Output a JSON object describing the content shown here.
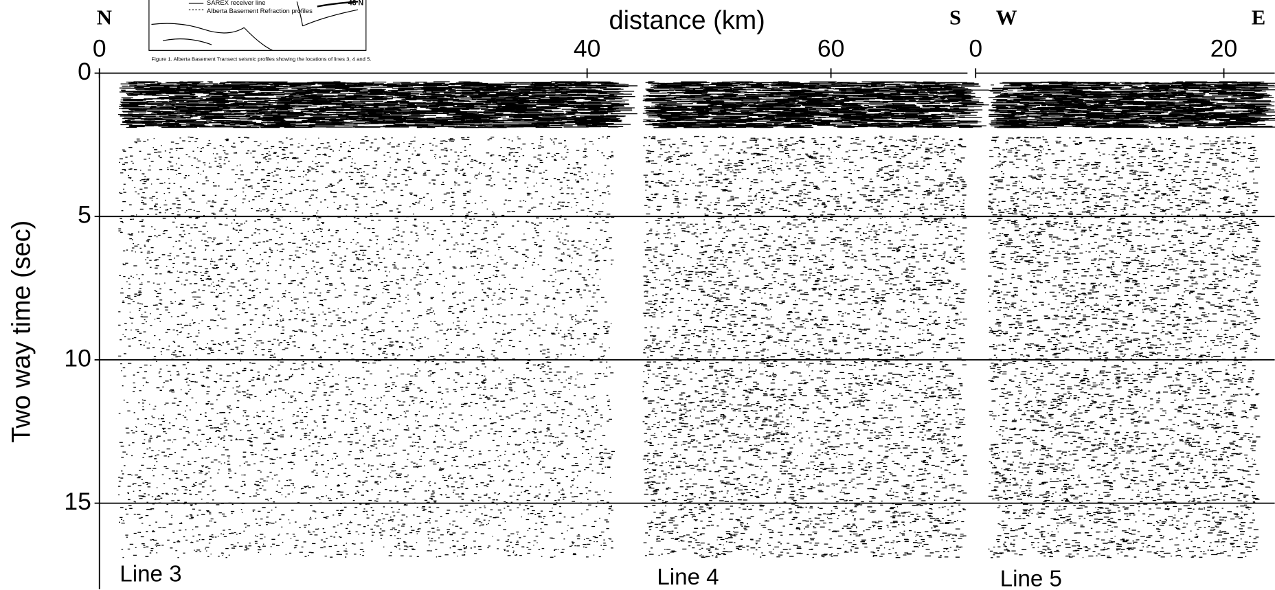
{
  "inset": {
    "legend": [
      "SAREX receiver line",
      "Alberta Basement Refraction profiles"
    ],
    "latitude": "48 N",
    "caption": "Figure 1. Alberta Basement Transect seismic profiles showing the locations of lines 3, 4 and 5."
  },
  "chart_data": {
    "type": "seismic-section",
    "xlabel": "distance (km)",
    "ylabel": "Two way time (sec)",
    "ylim": [
      0,
      18
    ],
    "yticks": [
      0,
      5,
      10,
      15
    ],
    "grid": true,
    "axes": [
      {
        "start": "N",
        "end": "S",
        "xlim": [
          0,
          71.2
        ],
        "xticks": [
          0,
          40,
          60
        ],
        "lines": [
          "Line 3",
          "Line 4"
        ]
      },
      {
        "start": "W",
        "end": "E",
        "xlim": [
          0,
          24.1
        ],
        "xticks": [
          0,
          20
        ],
        "lines": [
          "Line 5"
        ]
      }
    ]
  }
}
